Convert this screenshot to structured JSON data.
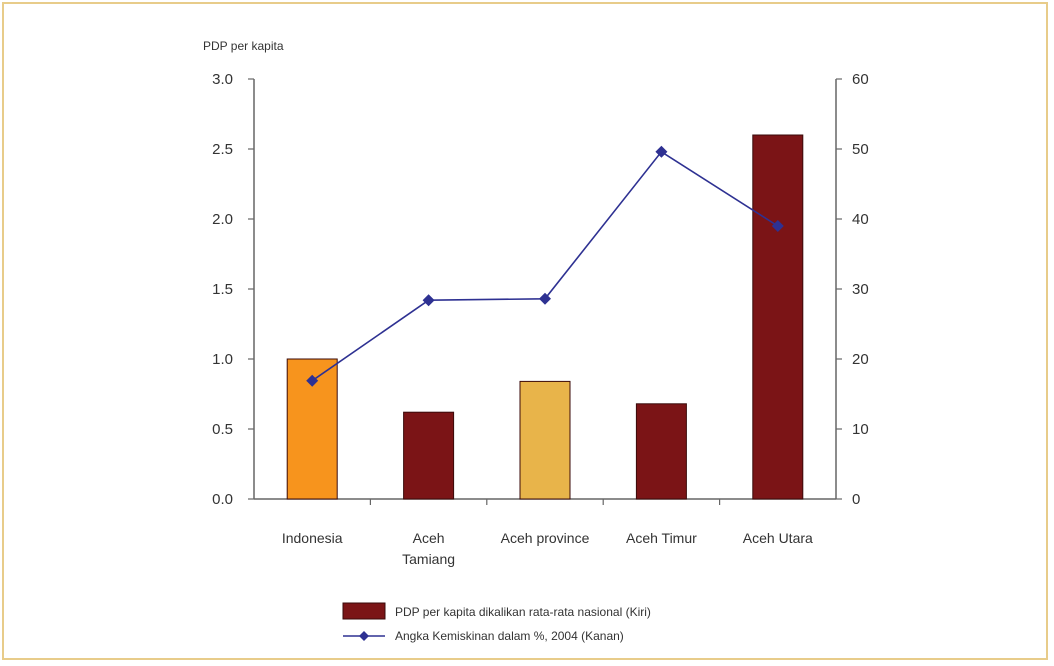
{
  "chart_data": {
    "type": "bar",
    "y_left_title": "PDP per kapita",
    "categories": [
      "Indonesia",
      "Aceh Tamiang",
      "Aceh province",
      "Aceh Timur",
      "Aceh Utara"
    ],
    "category_lines": [
      [
        "Indonesia"
      ],
      [
        "Aceh",
        "Tamiang"
      ],
      [
        "Aceh province"
      ],
      [
        "Aceh Timur"
      ],
      [
        "Aceh Utara"
      ]
    ],
    "series": [
      {
        "name": "PDP per kapita dikalikan rata-rata nasional (Kiri)",
        "kind": "bar",
        "axis": "left",
        "values": [
          1.0,
          0.62,
          0.84,
          0.68,
          2.6
        ],
        "colors": [
          "#f7941d",
          "#7b1416",
          "#e8b44a",
          "#7b1416",
          "#7b1416"
        ],
        "legend_color": "#7b1416"
      },
      {
        "name": "Angka Kemiskinan dalam %, 2004 (Kanan)",
        "kind": "line",
        "axis": "right",
        "values": [
          16.9,
          28.4,
          28.6,
          49.6,
          39.0
        ],
        "color": "#2e3192"
      }
    ],
    "ylim_left": [
      0,
      3.0
    ],
    "yticks_left": [
      "0.0",
      "0.5",
      "1.0",
      "1.5",
      "2.0",
      "2.5",
      "3.0"
    ],
    "ylim_right": [
      0,
      60
    ],
    "yticks_right": [
      "0",
      "10",
      "20",
      "30",
      "40",
      "50",
      "60"
    ],
    "grid": false,
    "legend_position": "bottom"
  }
}
